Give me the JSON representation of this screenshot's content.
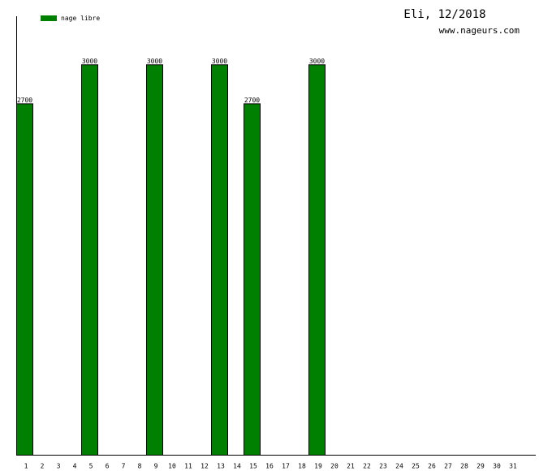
{
  "chart_data": {
    "type": "bar",
    "title": "Eli, 12/2018",
    "subtitle": "www.nageurs.com",
    "categories": [
      "1",
      "2",
      "3",
      "4",
      "5",
      "6",
      "7",
      "8",
      "9",
      "10",
      "11",
      "12",
      "13",
      "14",
      "15",
      "16",
      "17",
      "18",
      "19",
      "20",
      "21",
      "22",
      "23",
      "24",
      "25",
      "26",
      "27",
      "28",
      "29",
      "30",
      "31"
    ],
    "series": [
      {
        "name": "nage libre",
        "color": "#008000",
        "values": [
          2700,
          null,
          null,
          null,
          3000,
          null,
          null,
          null,
          3000,
          null,
          null,
          null,
          3000,
          null,
          2700,
          null,
          null,
          null,
          3000,
          null,
          null,
          null,
          null,
          null,
          null,
          null,
          null,
          null,
          null,
          null,
          null
        ]
      }
    ],
    "ylim": [
      0,
      3370
    ]
  }
}
